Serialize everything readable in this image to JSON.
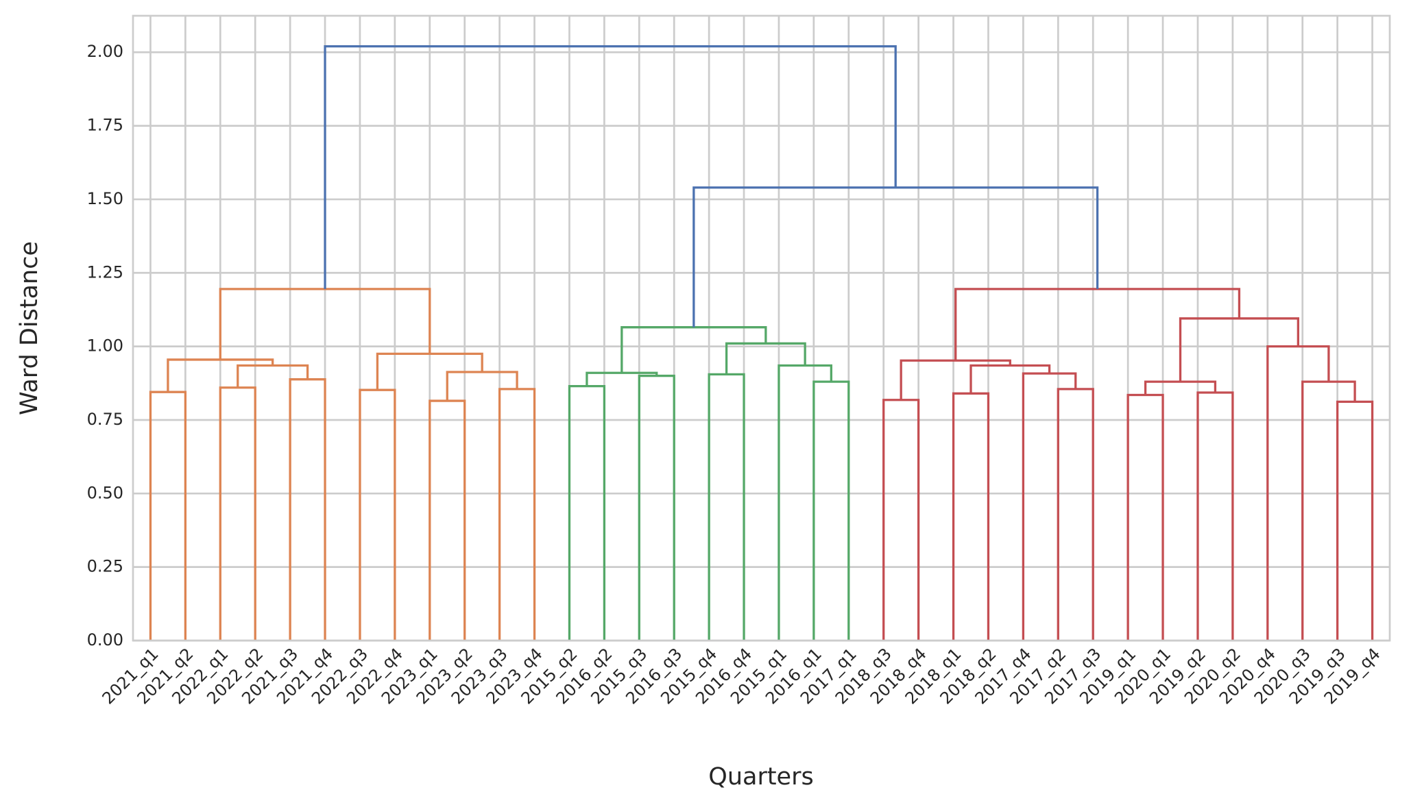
{
  "chart_data": {
    "type": "dendrogram",
    "xlabel": "Quarters",
    "ylabel": "Ward Distance",
    "xlim": [
      0,
      360
    ],
    "ylim": [
      0,
      2.124
    ],
    "grid": true,
    "yticks": [
      {
        "value": 0,
        "label": "0.00"
      },
      {
        "value": 0.25,
        "label": "0.25"
      },
      {
        "value": 0.5,
        "label": "0.50"
      },
      {
        "value": 0.75,
        "label": "0.75"
      },
      {
        "value": 1,
        "label": "1.00"
      },
      {
        "value": 1.25,
        "label": "1.25"
      },
      {
        "value": 1.5,
        "label": "1.50"
      },
      {
        "value": 1.75,
        "label": "1.75"
      },
      {
        "value": 2,
        "label": "2.00"
      }
    ],
    "tree": {
      "height": 2.02,
      "color": "#4c72b0",
      "children": [
        {
          "height": 1.195,
          "color": "#dd8452",
          "children": [
            {
              "height": 0.955,
              "color": "#dd8452",
              "children": [
                {
                  "height": 0.845,
                  "color": "#dd8452",
                  "children": [
                    "2021_q1",
                    "2021_q2"
                  ]
                },
                {
                  "height": 0.935,
                  "color": "#dd8452",
                  "children": [
                    {
                      "height": 0.86,
                      "color": "#dd8452",
                      "children": [
                        "2022_q1",
                        "2022_q2"
                      ]
                    },
                    {
                      "height": 0.888,
                      "color": "#dd8452",
                      "children": [
                        "2021_q3",
                        "2021_q4"
                      ]
                    }
                  ]
                }
              ]
            },
            {
              "height": 0.975,
              "color": "#dd8452",
              "children": [
                {
                  "height": 0.852,
                  "color": "#dd8452",
                  "children": [
                    "2022_q3",
                    "2022_q4"
                  ]
                },
                {
                  "height": 0.913,
                  "color": "#dd8452",
                  "children": [
                    {
                      "height": 0.815,
                      "color": "#dd8452",
                      "children": [
                        "2023_q1",
                        "2023_q2"
                      ]
                    },
                    {
                      "height": 0.855,
                      "color": "#dd8452",
                      "children": [
                        "2023_q3",
                        "2023_q4"
                      ]
                    }
                  ]
                }
              ]
            }
          ]
        },
        {
          "height": 1.54,
          "color": "#4c72b0",
          "children": [
            {
              "height": 1.065,
              "color": "#55a868",
              "children": [
                {
                  "height": 0.91,
                  "color": "#55a868",
                  "children": [
                    {
                      "height": 0.865,
                      "color": "#55a868",
                      "children": [
                        "2015_q2",
                        "2016_q2"
                      ]
                    },
                    {
                      "height": 0.9,
                      "color": "#55a868",
                      "children": [
                        "2015_q3",
                        "2016_q3"
                      ]
                    }
                  ]
                },
                {
                  "height": 1.01,
                  "color": "#55a868",
                  "children": [
                    {
                      "height": 0.905,
                      "color": "#55a868",
                      "children": [
                        "2015_q4",
                        "2016_q4"
                      ]
                    },
                    {
                      "height": 0.935,
                      "color": "#55a868",
                      "children": [
                        "2015_q1",
                        {
                          "height": 0.88,
                          "color": "#55a868",
                          "children": [
                            "2016_q1",
                            "2017_q1"
                          ]
                        }
                      ]
                    }
                  ]
                }
              ]
            },
            {
              "height": 1.195,
              "color": "#c44e52",
              "children": [
                {
                  "height": 0.952,
                  "color": "#c44e52",
                  "children": [
                    {
                      "height": 0.818,
                      "color": "#c44e52",
                      "children": [
                        "2018_q3",
                        "2018_q4"
                      ]
                    },
                    {
                      "height": 0.935,
                      "color": "#c44e52",
                      "children": [
                        {
                          "height": 0.84,
                          "color": "#c44e52",
                          "children": [
                            "2018_q1",
                            "2018_q2"
                          ]
                        },
                        {
                          "height": 0.908,
                          "color": "#c44e52",
                          "children": [
                            "2017_q4",
                            {
                              "height": 0.855,
                              "color": "#c44e52",
                              "children": [
                                "2017_q2",
                                "2017_q3"
                              ]
                            }
                          ]
                        }
                      ]
                    }
                  ]
                },
                {
                  "height": 1.095,
                  "color": "#c44e52",
                  "children": [
                    {
                      "height": 0.88,
                      "color": "#c44e52",
                      "children": [
                        {
                          "height": 0.835,
                          "color": "#c44e52",
                          "children": [
                            "2019_q1",
                            "2020_q1"
                          ]
                        },
                        {
                          "height": 0.843,
                          "color": "#c44e52",
                          "children": [
                            "2019_q2",
                            "2020_q2"
                          ]
                        }
                      ]
                    },
                    {
                      "height": 1.0,
                      "color": "#c44e52",
                      "children": [
                        "2020_q4",
                        {
                          "height": 0.88,
                          "color": "#c44e52",
                          "children": [
                            "2020_q3",
                            {
                              "height": 0.812,
                              "color": "#c44e52",
                              "children": [
                                "2019_q3",
                                "2019_q4"
                              ]
                            }
                          ]
                        }
                      ]
                    }
                  ]
                }
              ]
            }
          ]
        }
      ]
    }
  }
}
